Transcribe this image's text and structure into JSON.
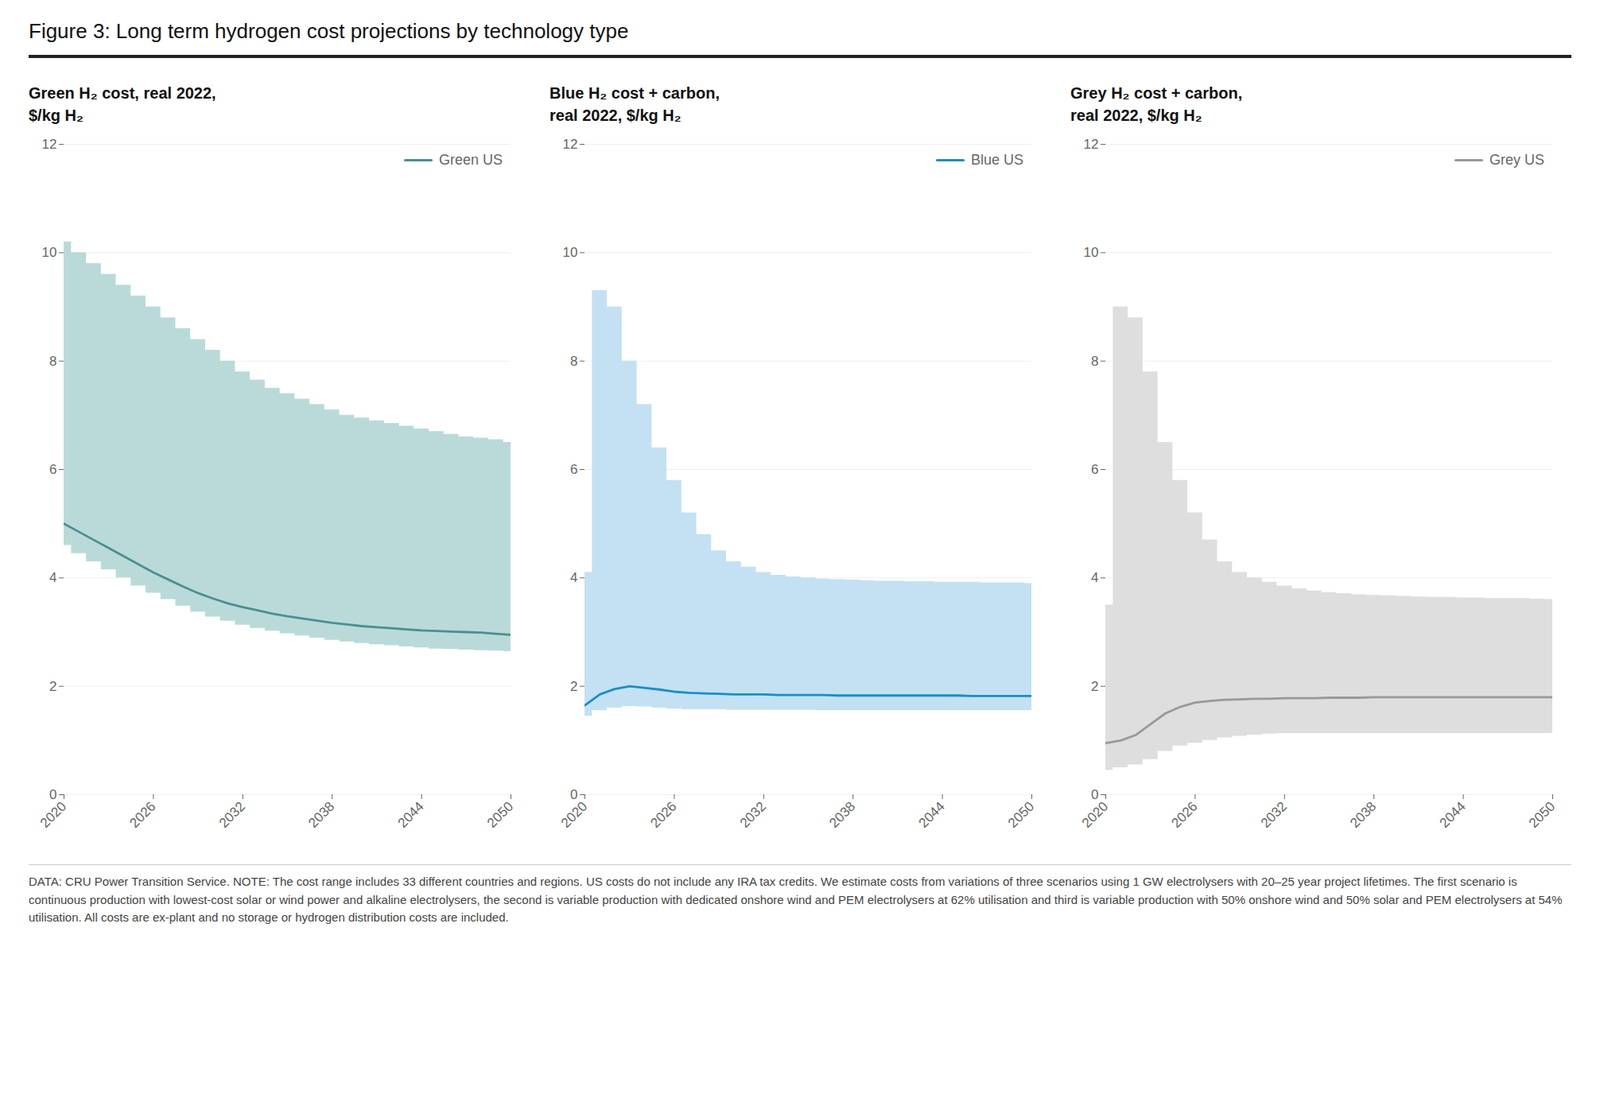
{
  "title": "Figure 3: Long term hydrogen cost projections by technology type",
  "footnote": "DATA: CRU Power Transition Service. NOTE: The cost range includes 33 different countries and regions. US costs do not include any IRA tax credits. We estimate costs from variations of three scenarios using 1 GW electrolysers with 20–25 year project lifetimes. The first scenario is continuous production with lowest-cost solar or wind power and alkaline electrolysers, the second is variable production with dedicated onshore wind and PEM electrolysers at 62% utilisation and third is variable production with 50% onshore wind and 50% solar and PEM electrolysers at 54% utilisation. All costs are ex-plant and no storage or hydrogen distribution costs are included.",
  "chart_data": [
    {
      "type": "line",
      "title": "Green H₂ cost, real 2022,\n$/kg H₂",
      "x": [
        2020,
        2021,
        2022,
        2023,
        2024,
        2025,
        2026,
        2027,
        2028,
        2029,
        2030,
        2031,
        2032,
        2033,
        2034,
        2035,
        2036,
        2037,
        2038,
        2039,
        2040,
        2041,
        2042,
        2043,
        2044,
        2045,
        2046,
        2047,
        2048,
        2049,
        2050
      ],
      "series": [
        {
          "type": "area",
          "color": "#aed4d4",
          "upper": [
            10.2,
            10.0,
            9.8,
            9.6,
            9.4,
            9.2,
            9.0,
            8.8,
            8.6,
            8.4,
            8.2,
            8.0,
            7.8,
            7.65,
            7.5,
            7.4,
            7.3,
            7.2,
            7.1,
            7.0,
            6.95,
            6.9,
            6.85,
            6.8,
            6.75,
            6.7,
            6.65,
            6.6,
            6.58,
            6.55,
            6.5
          ],
          "lower": [
            4.6,
            4.45,
            4.3,
            4.15,
            4.0,
            3.85,
            3.72,
            3.6,
            3.48,
            3.37,
            3.28,
            3.2,
            3.13,
            3.07,
            3.02,
            2.97,
            2.93,
            2.89,
            2.85,
            2.82,
            2.79,
            2.77,
            2.75,
            2.73,
            2.71,
            2.69,
            2.68,
            2.67,
            2.66,
            2.65,
            2.64
          ]
        },
        {
          "type": "line",
          "name": "Green US",
          "color": "#4a9090",
          "values": [
            5.0,
            4.85,
            4.7,
            4.55,
            4.4,
            4.25,
            4.1,
            3.97,
            3.84,
            3.72,
            3.62,
            3.53,
            3.46,
            3.4,
            3.34,
            3.29,
            3.25,
            3.21,
            3.17,
            3.14,
            3.11,
            3.09,
            3.07,
            3.05,
            3.03,
            3.02,
            3.01,
            3.0,
            2.99,
            2.97,
            2.95
          ]
        }
      ],
      "xlim": [
        2020,
        2050
      ],
      "xticks": [
        2020,
        2026,
        2032,
        2038,
        2044,
        2050
      ],
      "ylim": [
        0,
        12
      ],
      "yticks": [
        0,
        2,
        4,
        6,
        8,
        10,
        12
      ],
      "grid": true,
      "legend": "upper right"
    },
    {
      "type": "line",
      "title": "Blue H₂ cost + carbon,\nreal 2022, $/kg H₂",
      "x": [
        2020,
        2021,
        2022,
        2023,
        2024,
        2025,
        2026,
        2027,
        2028,
        2029,
        2030,
        2031,
        2032,
        2033,
        2034,
        2035,
        2036,
        2037,
        2038,
        2039,
        2040,
        2041,
        2042,
        2043,
        2044,
        2045,
        2046,
        2047,
        2048,
        2049,
        2050
      ],
      "series": [
        {
          "type": "area",
          "color": "#b8dcf0",
          "upper": [
            4.1,
            9.3,
            9.0,
            8.0,
            7.2,
            6.4,
            5.8,
            5.2,
            4.8,
            4.5,
            4.3,
            4.2,
            4.1,
            4.05,
            4.02,
            4.0,
            3.98,
            3.97,
            3.96,
            3.95,
            3.94,
            3.94,
            3.93,
            3.93,
            3.92,
            3.92,
            3.92,
            3.91,
            3.91,
            3.91,
            3.9
          ],
          "lower": [
            1.45,
            1.55,
            1.6,
            1.63,
            1.62,
            1.6,
            1.58,
            1.57,
            1.57,
            1.57,
            1.56,
            1.56,
            1.56,
            1.56,
            1.56,
            1.56,
            1.55,
            1.55,
            1.55,
            1.55,
            1.55,
            1.55,
            1.55,
            1.55,
            1.55,
            1.55,
            1.55,
            1.55,
            1.55,
            1.55,
            1.55
          ]
        },
        {
          "type": "line",
          "name": "Blue US",
          "color": "#1a8ec8",
          "values": [
            1.65,
            1.85,
            1.95,
            2.0,
            1.97,
            1.94,
            1.9,
            1.88,
            1.87,
            1.86,
            1.85,
            1.85,
            1.85,
            1.84,
            1.84,
            1.84,
            1.84,
            1.83,
            1.83,
            1.83,
            1.83,
            1.83,
            1.83,
            1.83,
            1.83,
            1.83,
            1.82,
            1.82,
            1.82,
            1.82,
            1.82
          ]
        }
      ],
      "xlim": [
        2020,
        2050
      ],
      "xticks": [
        2020,
        2026,
        2032,
        2038,
        2044,
        2050
      ],
      "ylim": [
        0,
        12
      ],
      "yticks": [
        0,
        2,
        4,
        6,
        8,
        10,
        12
      ],
      "grid": true,
      "legend": "upper right"
    },
    {
      "type": "line",
      "title": "Grey H₂ cost + carbon,\nreal 2022, $/kg H₂",
      "x": [
        2020,
        2021,
        2022,
        2023,
        2024,
        2025,
        2026,
        2027,
        2028,
        2029,
        2030,
        2031,
        2032,
        2033,
        2034,
        2035,
        2036,
        2037,
        2038,
        2039,
        2040,
        2041,
        2042,
        2043,
        2044,
        2045,
        2046,
        2047,
        2048,
        2049,
        2050
      ],
      "series": [
        {
          "type": "area",
          "color": "#d8d8d8",
          "upper": [
            3.5,
            9.0,
            8.8,
            7.8,
            6.5,
            5.8,
            5.2,
            4.7,
            4.3,
            4.1,
            4.0,
            3.92,
            3.85,
            3.8,
            3.76,
            3.73,
            3.71,
            3.69,
            3.68,
            3.67,
            3.66,
            3.65,
            3.64,
            3.64,
            3.63,
            3.63,
            3.62,
            3.62,
            3.62,
            3.61,
            3.6
          ],
          "lower": [
            0.45,
            0.5,
            0.55,
            0.65,
            0.8,
            0.9,
            0.95,
            1.0,
            1.05,
            1.08,
            1.1,
            1.12,
            1.13,
            1.13,
            1.13,
            1.13,
            1.13,
            1.13,
            1.13,
            1.13,
            1.13,
            1.13,
            1.13,
            1.13,
            1.13,
            1.13,
            1.13,
            1.13,
            1.13,
            1.13,
            1.13
          ]
        },
        {
          "type": "line",
          "name": "Grey US",
          "color": "#999999",
          "values": [
            0.95,
            1.0,
            1.1,
            1.3,
            1.5,
            1.62,
            1.7,
            1.73,
            1.75,
            1.76,
            1.77,
            1.77,
            1.78,
            1.78,
            1.78,
            1.79,
            1.79,
            1.79,
            1.8,
            1.8,
            1.8,
            1.8,
            1.8,
            1.8,
            1.8,
            1.8,
            1.8,
            1.8,
            1.8,
            1.8,
            1.8
          ]
        }
      ],
      "xlim": [
        2020,
        2050
      ],
      "xticks": [
        2020,
        2026,
        2032,
        2038,
        2044,
        2050
      ],
      "ylim": [
        0,
        12
      ],
      "yticks": [
        0,
        2,
        4,
        6,
        8,
        10,
        12
      ],
      "grid": true,
      "legend": "upper right"
    }
  ]
}
